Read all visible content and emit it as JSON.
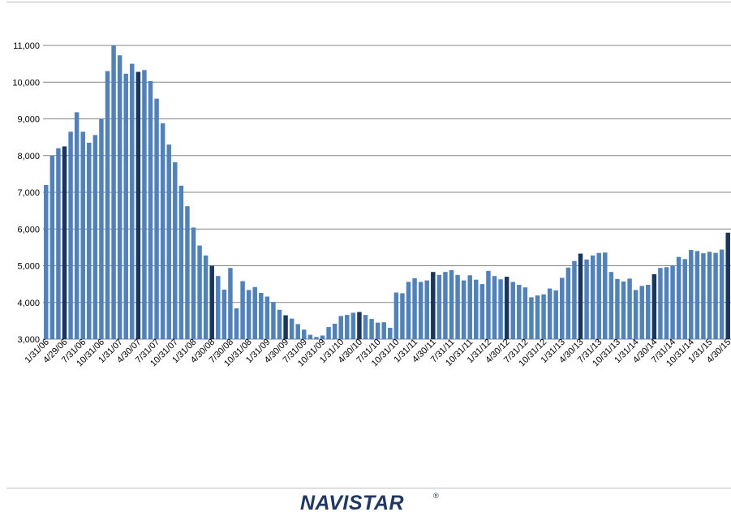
{
  "chart_data": {
    "type": "bar",
    "title": "",
    "xlabel": "",
    "ylabel": "",
    "ylim": [
      3000,
      11000
    ],
    "yticks": [
      "3,000",
      "4,000",
      "5,000",
      "6,000",
      "7,000",
      "8,000",
      "9,000",
      "10,000",
      "11,000"
    ],
    "grid": true,
    "colors": {
      "bar": "#4f81bd",
      "highlight": "#17375e",
      "grid": "#868686"
    },
    "tick_labels": [
      "1/31/06",
      "4/29/06",
      "7/31/06",
      "10/31/06",
      "1/31/07",
      "4/30/07",
      "7/31/07",
      "10/31/07",
      "1/31/08",
      "4/30/08",
      "7/30/08",
      "10/31/08",
      "1/31/09",
      "4/30/09",
      "7/31/09",
      "10/31/09",
      "1/31/10",
      "4/30/10",
      "7/31/10",
      "10/31/10",
      "1/31/11",
      "4/30/11",
      "7/31/11",
      "10/31/11",
      "1/31/12",
      "4/30/12",
      "7/31/12",
      "10/31/12",
      "1/31/13",
      "4/30/13",
      "7/31/13",
      "10/31/13",
      "1/31/14",
      "4/30/14",
      "7/31/14",
      "10/31/14",
      "1/31/15",
      "4/30/15"
    ],
    "values": [
      7200,
      8000,
      8200,
      8250,
      8650,
      9180,
      8650,
      8350,
      8560,
      9000,
      10300,
      11000,
      10730,
      10230,
      10500,
      10280,
      10330,
      10030,
      9550,
      8880,
      8300,
      7820,
      7180,
      6620,
      6040,
      5550,
      5280,
      5000,
      4720,
      4350,
      4940,
      3840,
      4580,
      4340,
      4420,
      4260,
      4160,
      4010,
      3800,
      3650,
      3560,
      3410,
      3260,
      3120,
      3060,
      3100,
      3330,
      3420,
      3630,
      3660,
      3720,
      3740,
      3660,
      3550,
      3450,
      3460,
      3310,
      4270,
      4250,
      4560,
      4660,
      4560,
      4600,
      4830,
      4750,
      4830,
      4880,
      4750,
      4600,
      4740,
      4620,
      4500,
      4860,
      4720,
      4630,
      4700,
      4560,
      4480,
      4410,
      4140,
      4190,
      4220,
      4380,
      4330,
      4670,
      4950,
      5130,
      5330,
      5170,
      5280,
      5350,
      5360,
      4830,
      4640,
      4570,
      4650,
      4340,
      4450,
      4480,
      4770,
      4940,
      4960,
      5010,
      5240,
      5180,
      5430,
      5400,
      5340,
      5380,
      5350,
      5440,
      5900
    ],
    "highlight_indices": [
      3,
      15,
      27,
      39,
      51,
      63,
      75,
      87,
      99,
      111
    ]
  },
  "logo": {
    "text": "NAVISTAR",
    "mark": "®"
  }
}
